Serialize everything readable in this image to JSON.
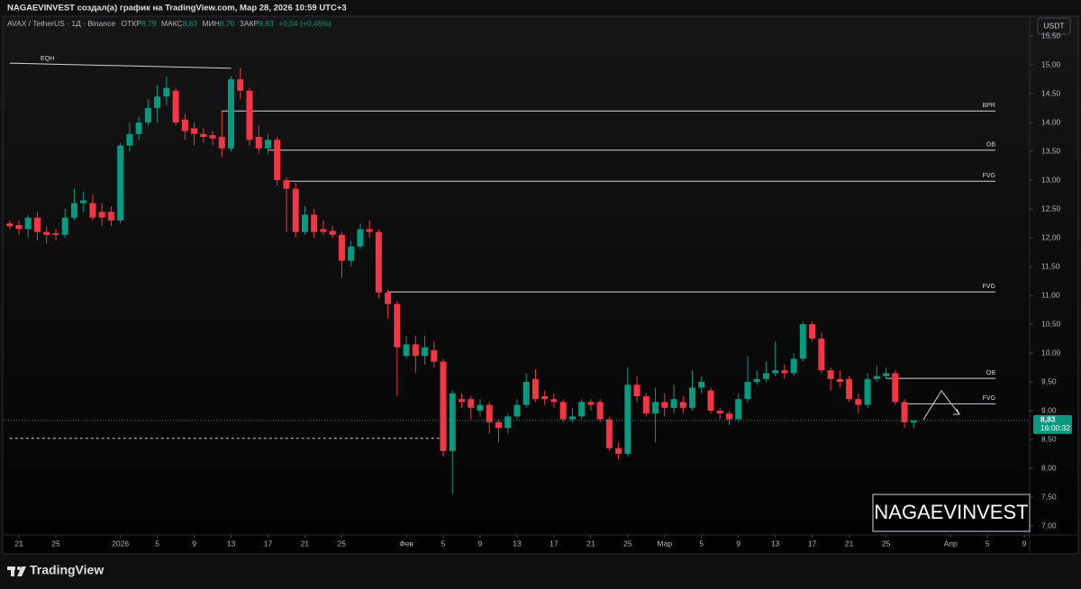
{
  "header": {
    "author_line": "NAGAEVINVEST создал(а) график на TradingView.com, Мар 28, 2026 10:59 UTC+3",
    "symbol": "AVAX / TetherUS · 1Д · Binance",
    "open_label": "ОТКР",
    "open": "8,79",
    "high_label": "МАКС",
    "high": "8,83",
    "low_label": "МИН",
    "low": "8,70",
    "close_label": "ЗАКР",
    "close": "8,83",
    "change": "+0,04 (+0,46%)"
  },
  "footer": {
    "brand": "TradingView"
  },
  "chart_data": {
    "type": "candlestick",
    "currency": "USDT",
    "watermark": "NAGAEVINVEST",
    "up_color": "#089981",
    "down_color": "#f23645",
    "x": [
      "2025-12-20",
      "2025-12-21",
      "2025-12-22",
      "2025-12-23",
      "2025-12-24",
      "2025-12-25",
      "2025-12-26",
      "2025-12-27",
      "2025-12-28",
      "2025-12-29",
      "2025-12-30",
      "2025-12-31",
      "2026-01-01",
      "2026-01-02",
      "2026-01-03",
      "2026-01-04",
      "2026-01-05",
      "2026-01-06",
      "2026-01-07",
      "2026-01-08",
      "2026-01-09",
      "2026-01-10",
      "2026-01-11",
      "2026-01-12",
      "2026-01-13",
      "2026-01-14",
      "2026-01-15",
      "2026-01-16",
      "2026-01-17",
      "2026-01-18",
      "2026-01-19",
      "2026-01-20",
      "2026-01-21",
      "2026-01-22",
      "2026-01-23",
      "2026-01-24",
      "2026-01-25",
      "2026-01-26",
      "2026-01-27",
      "2026-01-28",
      "2026-01-29",
      "2026-01-30",
      "2026-01-31",
      "2026-02-01",
      "2026-02-02",
      "2026-02-03",
      "2026-02-04",
      "2026-02-05",
      "2026-02-06",
      "2026-02-07",
      "2026-02-08",
      "2026-02-09",
      "2026-02-10",
      "2026-02-11",
      "2026-02-12",
      "2026-02-13",
      "2026-02-14",
      "2026-02-15",
      "2026-02-16",
      "2026-02-17",
      "2026-02-18",
      "2026-02-19",
      "2026-02-20",
      "2026-02-21",
      "2026-02-22",
      "2026-02-23",
      "2026-02-24",
      "2026-02-25",
      "2026-02-26",
      "2026-02-27",
      "2026-02-28",
      "2026-03-01",
      "2026-03-02",
      "2026-03-03",
      "2026-03-04",
      "2026-03-05",
      "2026-03-06",
      "2026-03-07",
      "2026-03-08",
      "2026-03-09",
      "2026-03-10",
      "2026-03-11",
      "2026-03-12",
      "2026-03-13",
      "2026-03-14",
      "2026-03-15",
      "2026-03-16",
      "2026-03-17",
      "2026-03-18",
      "2026-03-19",
      "2026-03-20",
      "2026-03-21",
      "2026-03-22",
      "2026-03-23",
      "2026-03-24",
      "2026-03-25",
      "2026-03-26",
      "2026-03-27",
      "2026-03-28"
    ],
    "open": [
      12.25,
      12.22,
      12.15,
      12.35,
      12.1,
      12.08,
      12.05,
      12.35,
      12.6,
      12.6,
      12.45,
      12.45,
      12.3,
      13.6,
      13.8,
      14.0,
      14.25,
      14.45,
      14.55,
      14.05,
      13.9,
      13.8,
      13.78,
      13.75,
      13.55,
      14.75,
      14.55,
      13.75,
      13.55,
      13.7,
      13.0,
      12.85,
      12.1,
      12.4,
      12.15,
      12.12,
      12.05,
      11.6,
      11.85,
      12.15,
      12.1,
      11.05,
      10.85,
      9.95,
      10.15,
      9.95,
      10.05,
      9.85,
      8.3,
      9.2,
      9.2,
      9.0,
      9.1,
      8.8,
      8.7,
      8.9,
      9.1,
      9.55,
      9.25,
      9.2,
      9.15,
      8.85,
      8.9,
      9.15,
      9.15,
      8.85,
      8.35,
      8.25,
      9.45,
      9.25,
      8.95,
      9.15,
      9.05,
      9.15,
      9.05,
      9.4,
      9.35,
      9.0,
      8.95,
      8.85,
      9.2,
      9.5,
      9.55,
      9.65,
      9.7,
      9.65,
      9.9,
      10.5,
      10.25,
      9.7,
      9.55,
      9.55,
      9.2,
      9.1,
      9.55,
      9.6,
      9.65,
      9.15,
      8.79
    ],
    "high": [
      12.3,
      12.3,
      12.4,
      12.45,
      12.2,
      12.15,
      12.5,
      12.85,
      12.8,
      12.75,
      12.6,
      12.55,
      13.65,
      14.0,
      14.1,
      14.4,
      14.65,
      14.8,
      14.6,
      14.15,
      14.0,
      13.9,
      13.85,
      14.2,
      14.8,
      14.95,
      14.6,
      13.95,
      13.8,
      13.75,
      13.05,
      12.95,
      12.55,
      12.5,
      12.3,
      12.2,
      12.1,
      11.95,
      12.25,
      12.3,
      12.15,
      11.1,
      10.9,
      10.3,
      10.3,
      10.3,
      10.2,
      9.9,
      9.35,
      9.3,
      9.25,
      9.2,
      9.15,
      8.85,
      8.95,
      9.2,
      9.65,
      9.72,
      9.35,
      9.3,
      9.2,
      9.05,
      9.2,
      9.2,
      9.2,
      8.9,
      8.45,
      9.75,
      9.6,
      9.3,
      9.4,
      9.3,
      9.45,
      9.25,
      9.7,
      9.6,
      9.4,
      9.05,
      9.0,
      9.3,
      9.95,
      9.7,
      9.85,
      10.2,
      9.8,
      10.0,
      10.55,
      10.55,
      10.35,
      9.75,
      9.7,
      9.6,
      9.3,
      9.65,
      9.78,
      9.75,
      9.7,
      9.2,
      8.83
    ],
    "low": [
      12.15,
      12.05,
      12.0,
      11.95,
      11.9,
      11.95,
      12.0,
      12.3,
      12.45,
      12.3,
      12.2,
      12.2,
      12.25,
      13.5,
      13.7,
      13.95,
      14.0,
      14.3,
      13.95,
      13.7,
      13.6,
      13.65,
      13.6,
      13.4,
      13.5,
      14.4,
      13.6,
      13.45,
      13.45,
      12.9,
      12.1,
      12.0,
      12.05,
      12.0,
      12.05,
      12.0,
      11.3,
      11.5,
      11.8,
      12.0,
      10.95,
      10.6,
      9.25,
      9.9,
      9.65,
      9.8,
      9.75,
      8.2,
      7.55,
      9.05,
      8.85,
      8.9,
      8.6,
      8.45,
      8.6,
      8.85,
      9.05,
      9.15,
      9.1,
      9.05,
      8.8,
      8.8,
      8.85,
      9.0,
      8.8,
      8.3,
      8.15,
      8.2,
      9.15,
      8.9,
      8.45,
      8.9,
      8.95,
      8.95,
      9.0,
      9.3,
      8.95,
      8.85,
      8.75,
      8.8,
      9.15,
      9.45,
      9.5,
      9.6,
      9.55,
      9.6,
      9.85,
      10.2,
      9.65,
      9.35,
      9.4,
      9.15,
      8.95,
      9.05,
      9.5,
      9.55,
      9.1,
      8.7,
      8.7
    ],
    "close": [
      12.2,
      12.15,
      12.35,
      12.1,
      12.05,
      12.05,
      12.35,
      12.6,
      12.65,
      12.35,
      12.35,
      12.3,
      13.6,
      13.8,
      14.0,
      14.25,
      14.45,
      14.6,
      14.0,
      13.85,
      13.8,
      13.75,
      13.72,
      13.55,
      14.75,
      14.55,
      13.7,
      13.55,
      13.7,
      13.0,
      12.85,
      12.1,
      12.4,
      12.1,
      12.1,
      12.05,
      11.6,
      11.85,
      12.15,
      12.1,
      11.05,
      10.85,
      10.1,
      10.15,
      9.95,
      10.1,
      9.85,
      8.3,
      9.3,
      9.15,
      9.05,
      9.1,
      8.8,
      8.7,
      8.9,
      9.1,
      9.5,
      9.2,
      9.2,
      9.15,
      8.85,
      8.9,
      9.15,
      9.1,
      8.85,
      8.35,
      8.25,
      9.45,
      9.25,
      8.95,
      9.15,
      9.05,
      9.2,
      9.05,
      9.4,
      9.5,
      9.0,
      8.95,
      8.85,
      9.2,
      9.5,
      9.55,
      9.65,
      9.7,
      9.65,
      9.9,
      10.5,
      10.25,
      9.7,
      9.55,
      9.5,
      9.2,
      9.1,
      9.55,
      9.6,
      9.65,
      9.15,
      8.8,
      8.83
    ],
    "ylim": [
      6.75,
      15.8
    ],
    "yticks": [
      {
        "value": 7,
        "label": "7,00"
      },
      {
        "value": 7.5,
        "label": "7,50"
      },
      {
        "value": 8,
        "label": "8,00"
      },
      {
        "value": 8.5,
        "label": "8,50"
      },
      {
        "value": 9,
        "label": "9,00"
      },
      {
        "value": 9.5,
        "label": "9,50"
      },
      {
        "value": 10,
        "label": "10,00"
      },
      {
        "value": 10.5,
        "label": "10,50"
      },
      {
        "value": 11,
        "label": "11,00"
      },
      {
        "value": 11.5,
        "label": "11,50"
      },
      {
        "value": 12,
        "label": "12,00"
      },
      {
        "value": 12.5,
        "label": "12,50"
      },
      {
        "value": 13,
        "label": "13,00"
      },
      {
        "value": 13.5,
        "label": "13,50"
      },
      {
        "value": 14,
        "label": "14,00"
      },
      {
        "value": 14.5,
        "label": "14,50"
      },
      {
        "value": 15,
        "label": "15,00"
      },
      {
        "value": 15.5,
        "label": "15,50"
      }
    ],
    "xticks": [
      {
        "value": "2025-12-21",
        "label": "21"
      },
      {
        "value": "2025-12-25",
        "label": "25"
      },
      {
        "value": "2026-01-01",
        "label": "2026"
      },
      {
        "value": "2026-01-05",
        "label": "5"
      },
      {
        "value": "2026-01-09",
        "label": "9"
      },
      {
        "value": "2026-01-13",
        "label": "13"
      },
      {
        "value": "2026-01-17",
        "label": "17"
      },
      {
        "value": "2026-01-21",
        "label": "21"
      },
      {
        "value": "2026-01-25",
        "label": "25"
      },
      {
        "value": "2026-02-01",
        "label": "Фев"
      },
      {
        "value": "2026-02-05",
        "label": "5"
      },
      {
        "value": "2026-02-09",
        "label": "9"
      },
      {
        "value": "2026-02-13",
        "label": "13"
      },
      {
        "value": "2026-02-17",
        "label": "17"
      },
      {
        "value": "2026-02-21",
        "label": "21"
      },
      {
        "value": "2026-02-25",
        "label": "25"
      },
      {
        "value": "2026-03-01",
        "label": "Мар"
      },
      {
        "value": "2026-03-05",
        "label": "5"
      },
      {
        "value": "2026-03-09",
        "label": "9"
      },
      {
        "value": "2026-03-13",
        "label": "13"
      },
      {
        "value": "2026-03-17",
        "label": "17"
      },
      {
        "value": "2026-03-21",
        "label": "21"
      },
      {
        "value": "2026-03-25",
        "label": "25"
      },
      {
        "value": "2026-04-01",
        "label": "Апр"
      },
      {
        "value": "2026-04-05",
        "label": "5"
      },
      {
        "value": "2026-04-09",
        "label": "9"
      }
    ],
    "grid": false,
    "eqh": {
      "label": "EQH",
      "values": [
        15.03,
        14.94
      ],
      "x": [
        "2025-12-20",
        "2026-01-13"
      ]
    },
    "levels": [
      {
        "label": "BPR",
        "value": 14.2,
        "start": "2026-01-12"
      },
      {
        "label": "OB",
        "value": 13.52,
        "start": "2026-01-17"
      },
      {
        "label": "FVG",
        "value": 12.98,
        "start": "2026-01-19"
      },
      {
        "label": "FVG",
        "value": 11.06,
        "start": "2026-01-30"
      },
      {
        "label": "OB",
        "value": 9.56,
        "start": "2026-03-25"
      },
      {
        "label": "FVG",
        "value": 9.12,
        "start": "2026-03-27"
      }
    ],
    "dashed_level": {
      "value": 8.52,
      "x": [
        "2025-12-20",
        "2026-02-05"
      ]
    },
    "last_price": {
      "value": 8.83,
      "label": "8,83",
      "countdown": "16:00:32"
    }
  }
}
